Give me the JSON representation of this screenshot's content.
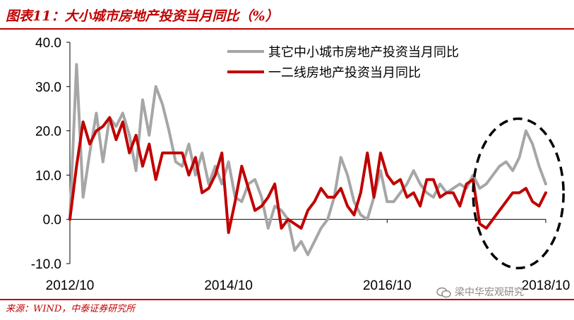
{
  "title": "图表11：大小城市房地产投资当月同比（%）",
  "source": "来源：WIND，中泰证券研究所",
  "watermark": "梁中华宏观研究",
  "colors": {
    "accent": "#c00000",
    "series_grey": "#a6a6a6",
    "series_red": "#c00000"
  },
  "chart_data": {
    "type": "line",
    "title": "",
    "xlabel": "",
    "ylabel": "",
    "ylim": [
      -10,
      40
    ],
    "y_ticks": [
      "40.0",
      "30.0",
      "20.0",
      "10.0",
      "0.0",
      "-10.0"
    ],
    "x_tick_labels": [
      "2012/10",
      "2014/10",
      "2016/10",
      "2018/10"
    ],
    "x": [
      "2012/10",
      "2012/11",
      "2012/12",
      "2013/01",
      "2013/02",
      "2013/03",
      "2013/04",
      "2013/05",
      "2013/06",
      "2013/07",
      "2013/08",
      "2013/09",
      "2013/10",
      "2013/11",
      "2013/12",
      "2014/01",
      "2014/02",
      "2014/03",
      "2014/04",
      "2014/05",
      "2014/06",
      "2014/07",
      "2014/08",
      "2014/09",
      "2014/10",
      "2014/11",
      "2014/12",
      "2015/01",
      "2015/02",
      "2015/03",
      "2015/04",
      "2015/05",
      "2015/06",
      "2015/07",
      "2015/08",
      "2015/09",
      "2015/10",
      "2015/11",
      "2015/12",
      "2016/01",
      "2016/02",
      "2016/03",
      "2016/04",
      "2016/05",
      "2016/06",
      "2016/07",
      "2016/08",
      "2016/09",
      "2016/10",
      "2016/11",
      "2016/12",
      "2017/01",
      "2017/02",
      "2017/03",
      "2017/04",
      "2017/05",
      "2017/06",
      "2017/07",
      "2017/08",
      "2017/09",
      "2017/10",
      "2017/11",
      "2017/12",
      "2018/01",
      "2018/02",
      "2018/03",
      "2018/04",
      "2018/05",
      "2018/06",
      "2018/07",
      "2018/08",
      "2018/09",
      "2018/10"
    ],
    "series": [
      {
        "name": "其它中小城市房地产投资当月同比",
        "color": "#a6a6a6",
        "values": [
          0,
          35,
          5,
          15,
          24,
          13,
          23,
          21,
          24,
          19,
          11,
          27,
          19,
          30,
          26,
          20,
          13,
          12,
          17,
          10,
          15,
          8,
          12,
          8,
          13,
          5,
          4,
          8,
          9,
          5,
          -2,
          3,
          2,
          0,
          -7,
          -5,
          -8,
          -5,
          -2,
          0,
          5,
          14,
          10,
          4,
          1,
          0,
          5,
          11,
          4,
          4,
          6,
          8,
          11,
          8,
          6,
          5,
          8,
          6,
          7,
          8,
          7,
          10,
          7,
          8,
          10,
          12,
          13,
          11,
          14,
          20,
          17,
          12,
          8
        ]
      },
      {
        "name": "一二线房地产投资当月同比",
        "color": "#c00000",
        "values": [
          0,
          12,
          22,
          17,
          20,
          21,
          23,
          18,
          22,
          15,
          19,
          12,
          17,
          9,
          15,
          15,
          15,
          15,
          10,
          14,
          6,
          7,
          10,
          15,
          -3,
          4,
          12,
          7,
          2,
          3,
          5,
          8,
          -2,
          0,
          -1,
          -2,
          2,
          4,
          7,
          5,
          5,
          7,
          3,
          1,
          6,
          15,
          5,
          15,
          10,
          8,
          9,
          5,
          6,
          3,
          9,
          9,
          5,
          6,
          6,
          3,
          8,
          9,
          -1,
          -2,
          0,
          2,
          4,
          6,
          6,
          7,
          4,
          3,
          6
        ]
      }
    ],
    "legend_position": "top-right",
    "grid": false,
    "annotations": [
      "dashed ellipse highlighting 2017/12–2018/10"
    ]
  }
}
